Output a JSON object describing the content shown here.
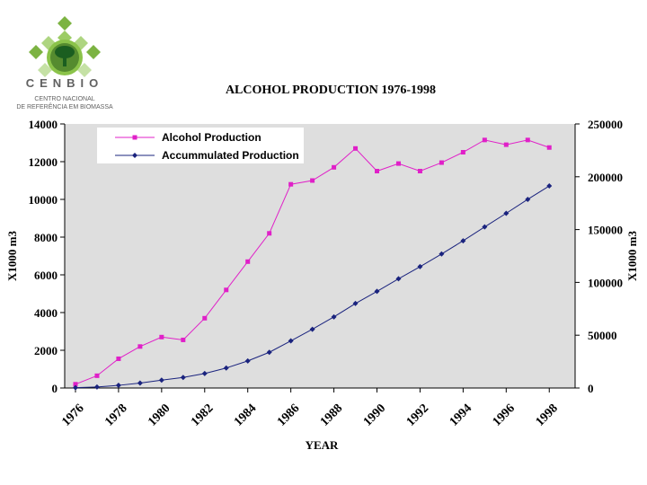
{
  "brand": {
    "name": "CENBIO",
    "line1": "CENTRO NACIONAL",
    "line2": "DE REFERÊNCIA EM BIOMASSA",
    "colors": {
      "green": "#7cb342",
      "dark_green": "#2e7d32",
      "grey": "#9e9e9e"
    },
    "icon": "tree-diamond-logo"
  },
  "chart_data": {
    "type": "line",
    "title": "ALCOHOL PRODUCTION 1976-1998",
    "xlabel": "YEAR",
    "ylabel": "X1000 m3",
    "y2label": "X1000 m3",
    "xlim": [
      1975.5,
      1999.2
    ],
    "ylim": [
      0,
      14000
    ],
    "y2lim": [
      0,
      250000
    ],
    "x_ticks": [
      1976,
      1978,
      1980,
      1982,
      1984,
      1986,
      1988,
      1990,
      1992,
      1994,
      1996,
      1998
    ],
    "x_tick_labels": [
      "1976",
      "1978",
      "1980",
      "1982",
      "1984",
      "1986",
      "1988",
      "1990",
      "1992",
      "1994",
      "1996",
      "1998"
    ],
    "y_ticks": [
      0,
      2000,
      4000,
      6000,
      8000,
      10000,
      12000,
      14000
    ],
    "y_tick_labels": [
      "0",
      "2000",
      "4000",
      "6000",
      "8000",
      "10000",
      "12000",
      "14000"
    ],
    "y2_ticks": [
      0,
      50000,
      100000,
      150000,
      200000,
      250000
    ],
    "y2_tick_labels": [
      "0",
      "50000",
      "100000",
      "150000",
      "200000",
      "250000"
    ],
    "grid": false,
    "legend_position": "top-left",
    "plot_background": "#dedede",
    "series": [
      {
        "name": "Alcohol Production",
        "axis": "left",
        "color": "#e020c8",
        "marker": "square",
        "x": [
          1976,
          1977,
          1978,
          1979,
          1980,
          1981,
          1982,
          1983,
          1984,
          1985,
          1986,
          1987,
          1988,
          1989,
          1990,
          1991,
          1992,
          1993,
          1994,
          1995,
          1996,
          1997,
          1998
        ],
        "values": [
          200,
          650,
          1550,
          2200,
          2700,
          2550,
          3700,
          5200,
          6700,
          8200,
          10800,
          11000,
          11700,
          12700,
          11500,
          11900,
          11500,
          11950,
          12500,
          13150,
          12900,
          13150,
          12750
        ]
      },
      {
        "name": "Accummulated Production",
        "axis": "right",
        "color": "#1a237e",
        "marker": "diamond",
        "x": [
          1976,
          1977,
          1978,
          1979,
          1980,
          1981,
          1982,
          1983,
          1984,
          1985,
          1986,
          1987,
          1988,
          1989,
          1990,
          1991,
          1992,
          1993,
          1994,
          1995,
          1996,
          1997,
          1998
        ],
        "values": [
          300,
          1000,
          2500,
          4700,
          7400,
          10000,
          13700,
          18900,
          25600,
          33800,
          44600,
          55600,
          67300,
          80000,
          91500,
          103400,
          114900,
          126900,
          139400,
          152500,
          165400,
          178600,
          191300
        ]
      }
    ]
  }
}
